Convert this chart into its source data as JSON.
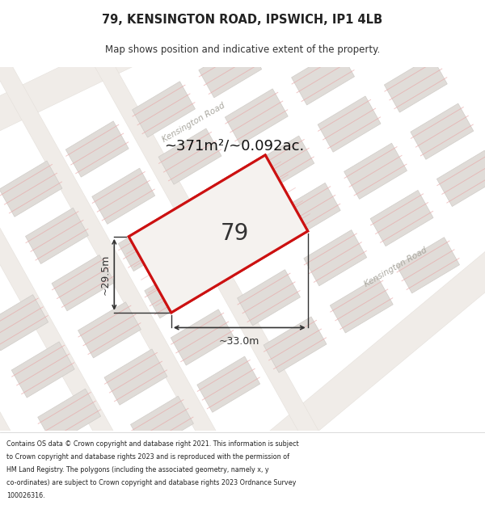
{
  "title_line1": "79, KENSINGTON ROAD, IPSWICH, IP1 4LB",
  "title_line2": "Map shows position and indicative extent of the property.",
  "area_text": "~371m²/~0.092ac.",
  "plot_number": "79",
  "dim_width": "~33.0m",
  "dim_height": "~29.5m",
  "road_label": "Kensington Road",
  "footer_lines": [
    "Contains OS data © Crown copyright and database right 2021. This information is subject",
    "to Crown copyright and database rights 2023 and is reproduced with the permission of",
    "HM Land Registry. The polygons (including the associated geometry, namely x, y",
    "co-ordinates) are subject to Crown copyright and database rights 2023 Ordnance Survey",
    "100026316."
  ],
  "map_bg": "#f7f5f2",
  "plot_edge": "#cc1111",
  "road_line_color": "#e8a8a8",
  "block_fill": "#e0dcd8",
  "block_edge": "#d0ccc8",
  "road_fill": "#f0ece8",
  "road_edge": "#e0dbd5"
}
